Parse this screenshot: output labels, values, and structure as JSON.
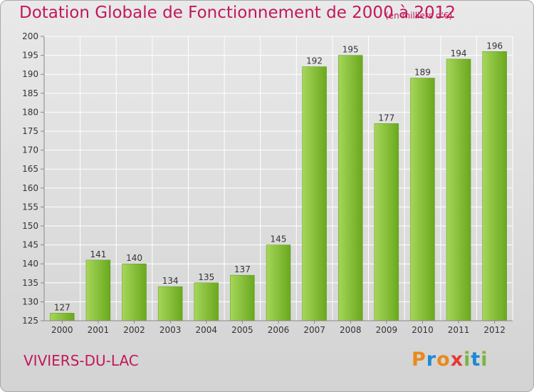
{
  "header": {
    "title": "Dotation Globale de Fonctionnement de 2000 à 2012",
    "subtitle": "(en milliers d'€)"
  },
  "footer": {
    "city": "VIVIERS-DU-LAC",
    "brand_text": "Proxiti",
    "brand_colors": [
      "#e88a1a",
      "#1e88d4",
      "#e53935",
      "#7cb342"
    ]
  },
  "colors": {
    "title": "#c2185b",
    "bar_light": "#9ccc52",
    "bar_dark": "#6aa81e",
    "grid": "#ffffff"
  },
  "chart_data": {
    "type": "bar",
    "title": "Dotation Globale de Fonctionnement de 2000 à 2012",
    "subtitle": "(en milliers d'€)",
    "xlabel": "",
    "ylabel": "",
    "categories": [
      "2000",
      "2001",
      "2002",
      "2003",
      "2004",
      "2005",
      "2006",
      "2007",
      "2008",
      "2009",
      "2010",
      "2011",
      "2012"
    ],
    "values": [
      127,
      141,
      140,
      134,
      135,
      137,
      145,
      192,
      195,
      177,
      189,
      194,
      196
    ],
    "ylim": [
      125,
      200
    ],
    "yticks": [
      125,
      130,
      135,
      140,
      145,
      150,
      155,
      160,
      165,
      170,
      175,
      180,
      185,
      190,
      195,
      200
    ],
    "grid": true,
    "data_labels": true
  }
}
